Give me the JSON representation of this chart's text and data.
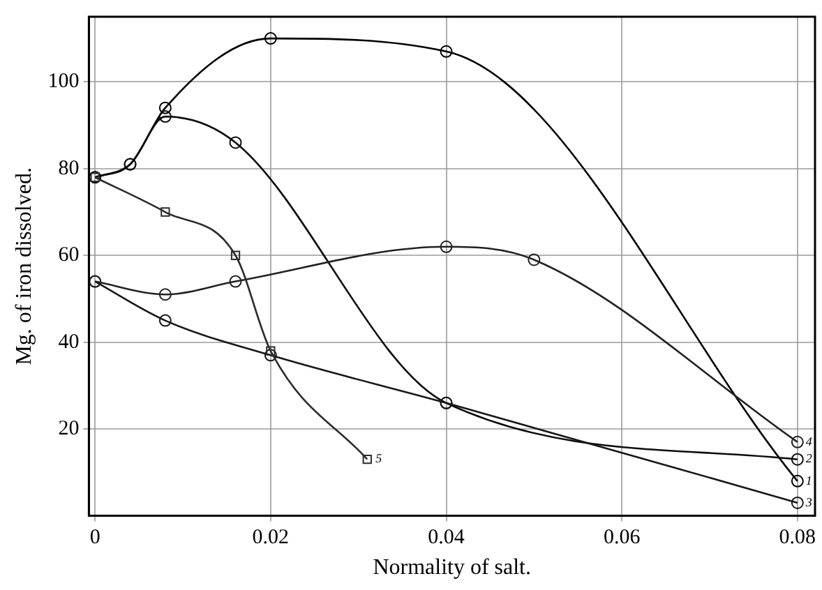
{
  "chart_data": {
    "type": "line",
    "xlabel": "Normality of salt.",
    "ylabel": "Mg. of iron dissolved.",
    "xlim": [
      -0.0007,
      0.082
    ],
    "ylim": [
      0,
      115
    ],
    "xticks": [
      0,
      0.02,
      0.04,
      0.06,
      0.08
    ],
    "yticks": [
      20,
      40,
      60,
      80,
      100
    ],
    "grid": true,
    "legend": false,
    "line_style": "solid",
    "series": [
      {
        "name": "1",
        "color": "#000000",
        "marker": "circle",
        "x": [
          0,
          0.004,
          0.008,
          0.02,
          0.04,
          0.08
        ],
        "values": [
          78,
          81,
          94,
          110,
          107,
          8
        ]
      },
      {
        "name": "2",
        "color": "#0c0c0c",
        "marker": "circle",
        "x": [
          0,
          0.004,
          0.008,
          0.016,
          0.04,
          0.08
        ],
        "values": [
          78,
          81,
          92,
          86,
          26,
          13
        ]
      },
      {
        "name": "3",
        "color": "#181818",
        "marker": "circle",
        "x": [
          0,
          0.008,
          0.02,
          0.04,
          0.08
        ],
        "values": [
          54,
          45,
          37,
          26,
          3
        ]
      },
      {
        "name": "4",
        "color": "#222222",
        "marker": "circle",
        "x": [
          0,
          0.008,
          0.016,
          0.04,
          0.05,
          0.08
        ],
        "values": [
          54,
          51,
          54,
          62,
          59,
          17
        ]
      },
      {
        "name": "5",
        "color": "#2c2c2c",
        "marker": "square",
        "x": [
          0,
          0.008,
          0.016,
          0.02,
          0.031
        ],
        "values": [
          78,
          70,
          60,
          38,
          13
        ]
      }
    ]
  }
}
